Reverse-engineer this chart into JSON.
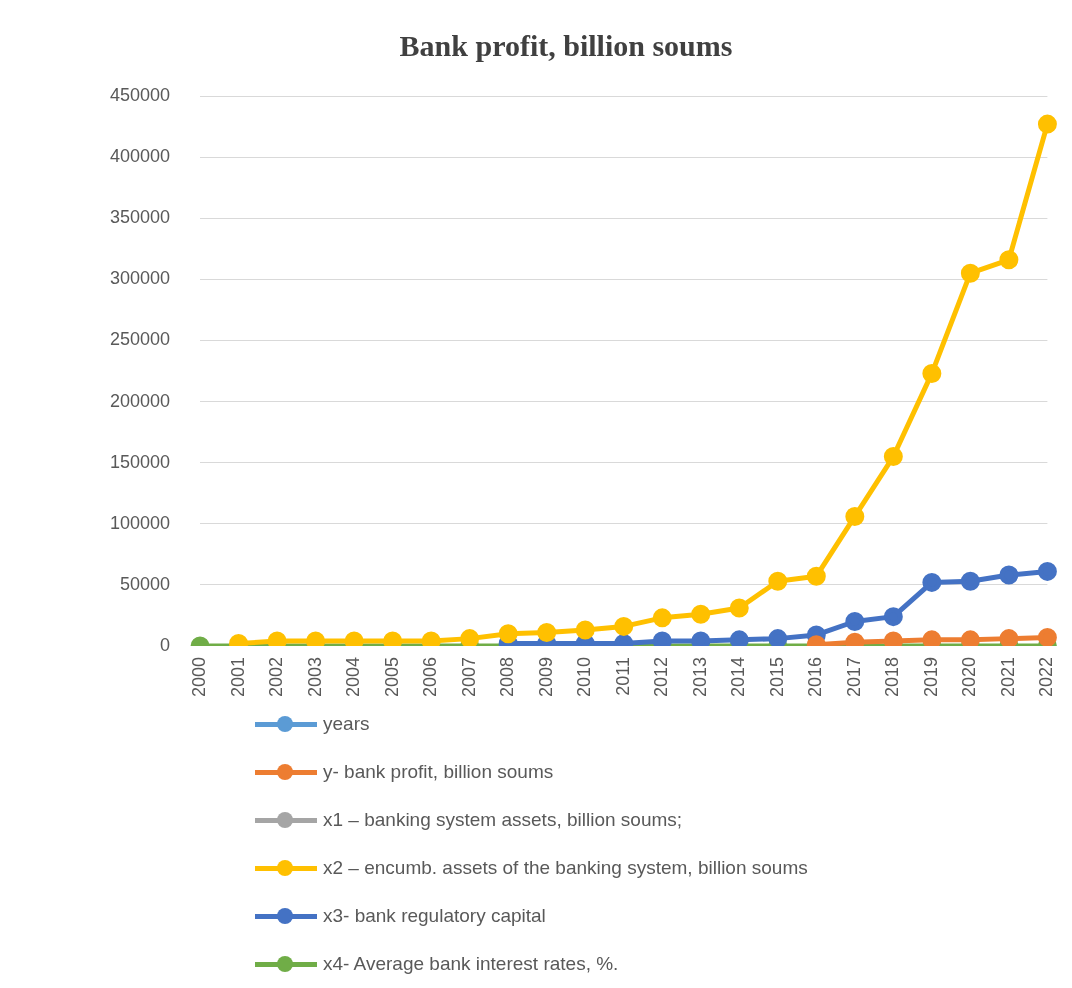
{
  "chart_data": {
    "type": "line",
    "title": "Bank profit, billion soums",
    "categories": [
      "2000",
      "2001",
      "2002",
      "2003",
      "2004",
      "2005",
      "2006",
      "2007",
      "2008",
      "2009",
      "2010",
      "2011",
      "2012",
      "2013",
      "2014",
      "2015",
      "2016",
      "2017",
      "2018",
      "2019",
      "2020",
      "2021",
      "2022"
    ],
    "ylim": [
      0,
      450000
    ],
    "yticks": [
      0,
      50000,
      100000,
      150000,
      200000,
      250000,
      300000,
      350000,
      400000,
      450000
    ],
    "grid": "y",
    "legend": "bottom",
    "marker": "circle",
    "line_style": "solid",
    "series": [
      {
        "name": "years",
        "color": "#5b9bd5",
        "values": [
          null,
          null,
          null,
          null,
          null,
          null,
          null,
          null,
          null,
          null,
          null,
          null,
          null,
          null,
          null,
          null,
          null,
          null,
          null,
          null,
          null,
          null,
          null
        ]
      },
      {
        "name": "y- bank profit, billion soums",
        "color": "#ed7d31",
        "values": [
          null,
          null,
          null,
          null,
          null,
          null,
          null,
          null,
          null,
          null,
          null,
          null,
          null,
          null,
          null,
          null,
          1000,
          3000,
          4000,
          5000,
          5000,
          6000,
          7000
        ]
      },
      {
        "name": "x1 – banking system assets, billion soums;",
        "color": "#a5a5a5",
        "values": [
          null,
          null,
          null,
          null,
          null,
          null,
          null,
          null,
          null,
          null,
          null,
          null,
          null,
          null,
          null,
          null,
          null,
          null,
          null,
          null,
          null,
          null,
          null
        ]
      },
      {
        "name": "x2 – encumb. assets of the banking system, billion soums",
        "color": "#ffc000",
        "values": [
          null,
          2000,
          4000,
          4000,
          4000,
          4000,
          4000,
          6000,
          10000,
          11000,
          13000,
          16000,
          23000,
          26000,
          31000,
          53000,
          57000,
          106000,
          155000,
          223000,
          305000,
          316000,
          427000
        ]
      },
      {
        "name": "x3- bank regulatory capital",
        "color": "#4472c4",
        "values": [
          null,
          null,
          null,
          null,
          null,
          null,
          null,
          null,
          2000,
          2000,
          2000,
          2000,
          4000,
          4000,
          5000,
          6000,
          9000,
          20000,
          24000,
          52000,
          53000,
          58000,
          61000
        ]
      },
      {
        "name": "x4- Average bank interest rates, %.",
        "color": "#70ad47",
        "values": [
          0,
          0,
          0,
          0,
          0,
          0,
          0,
          0,
          0,
          0,
          0,
          0,
          0,
          0,
          0,
          0,
          0,
          0,
          0,
          0,
          0,
          0,
          0
        ]
      }
    ]
  }
}
